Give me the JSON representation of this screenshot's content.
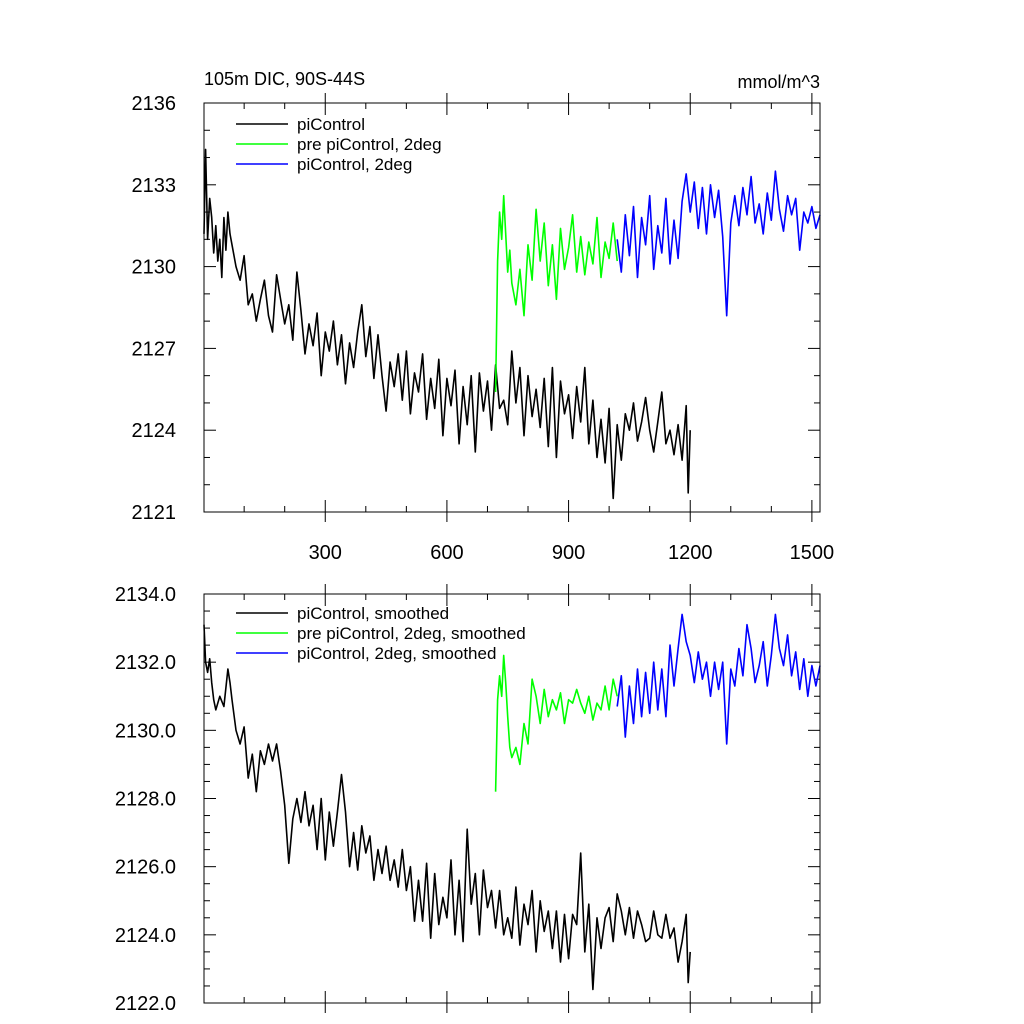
{
  "chart_data": [
    {
      "type": "line",
      "title": "105m DIC, 90S-44S",
      "units": "mmol/m^3",
      "xlim": [
        1,
        1520
      ],
      "ylim": [
        2121,
        2136
      ],
      "x_ticks": [
        300,
        600,
        900,
        1200,
        1500
      ],
      "y_ticks": [
        2121,
        2124,
        2127,
        2130,
        2133,
        2136
      ],
      "y_tick_labels": [
        "2121",
        "2124",
        "2127",
        "2130",
        "2133",
        "2136"
      ],
      "x_tick_labels": [
        "300",
        "600",
        "900",
        "1200",
        "1500"
      ],
      "legend_position": "top-left",
      "series": [
        {
          "name": "piControl",
          "color": "#000000",
          "x": [
            1,
            5,
            10,
            15,
            20,
            25,
            30,
            35,
            40,
            45,
            50,
            55,
            60,
            65,
            70,
            80,
            90,
            100,
            110,
            120,
            130,
            140,
            150,
            160,
            170,
            180,
            190,
            200,
            210,
            220,
            230,
            240,
            250,
            260,
            270,
            280,
            290,
            300,
            310,
            320,
            330,
            340,
            350,
            360,
            370,
            380,
            390,
            400,
            410,
            420,
            430,
            440,
            450,
            460,
            470,
            480,
            490,
            500,
            510,
            520,
            530,
            540,
            550,
            560,
            570,
            580,
            590,
            600,
            610,
            620,
            630,
            640,
            650,
            660,
            670,
            680,
            690,
            700,
            710,
            720,
            730,
            740,
            750,
            760,
            770,
            780,
            790,
            800,
            810,
            820,
            830,
            840,
            850,
            860,
            870,
            880,
            890,
            900,
            910,
            920,
            930,
            940,
            950,
            960,
            970,
            980,
            990,
            1000,
            1010,
            1020,
            1030,
            1040,
            1050,
            1060,
            1070,
            1080,
            1090,
            1100,
            1110,
            1120,
            1130,
            1140,
            1150,
            1160,
            1170,
            1180,
            1190,
            1195,
            1200
          ],
          "y": [
            2131.2,
            2134.3,
            2131.0,
            2132.5,
            2131.8,
            2130.5,
            2131.5,
            2130.2,
            2131.0,
            2129.6,
            2131.8,
            2130.6,
            2132.0,
            2131.2,
            2130.8,
            2130.0,
            2129.5,
            2130.4,
            2128.6,
            2129.0,
            2128.0,
            2128.8,
            2129.5,
            2128.2,
            2127.6,
            2129.7,
            2128.8,
            2127.9,
            2128.6,
            2127.3,
            2129.8,
            2128.4,
            2126.8,
            2127.9,
            2127.1,
            2128.3,
            2126.0,
            2127.6,
            2126.9,
            2128.0,
            2126.4,
            2127.5,
            2125.7,
            2127.2,
            2126.3,
            2127.6,
            2128.6,
            2126.7,
            2127.8,
            2125.9,
            2127.5,
            2126.0,
            2124.7,
            2126.5,
            2125.6,
            2126.8,
            2125.1,
            2126.9,
            2124.6,
            2126.1,
            2125.4,
            2126.8,
            2124.4,
            2125.9,
            2124.8,
            2126.6,
            2123.8,
            2125.9,
            2124.9,
            2126.2,
            2123.5,
            2125.6,
            2124.2,
            2126.0,
            2123.2,
            2126.1,
            2124.7,
            2125.8,
            2124.0,
            2126.4,
            2124.8,
            2125.1,
            2124.2,
            2126.9,
            2125.0,
            2126.3,
            2123.8,
            2126.0,
            2124.5,
            2125.5,
            2124.1,
            2125.9,
            2123.4,
            2126.3,
            2123.0,
            2125.8,
            2124.6,
            2125.3,
            2123.7,
            2125.6,
            2124.3,
            2126.3,
            2123.5,
            2125.1,
            2123.0,
            2124.4,
            2122.8,
            2124.8,
            2121.5,
            2124.2,
            2122.9,
            2124.6,
            2124.0,
            2125.0,
            2123.6,
            2124.3,
            2125.2,
            2124.0,
            2123.2,
            2124.3,
            2125.4,
            2123.5,
            2124.0,
            2123.1,
            2124.2,
            2122.9,
            2124.9,
            2121.7,
            2124.0
          ]
        },
        {
          "name": "pre piControl, 2deg",
          "color": "#00ff00",
          "x": [
            720,
            725,
            730,
            735,
            740,
            745,
            750,
            755,
            760,
            770,
            780,
            790,
            800,
            810,
            820,
            830,
            840,
            850,
            860,
            870,
            880,
            890,
            900,
            910,
            920,
            930,
            940,
            950,
            960,
            970,
            980,
            990,
            1000,
            1010,
            1020
          ],
          "y": [
            2125.4,
            2130.2,
            2132.0,
            2131.0,
            2132.6,
            2131.2,
            2129.8,
            2130.6,
            2129.4,
            2128.6,
            2129.9,
            2128.2,
            2130.8,
            2129.5,
            2132.1,
            2130.2,
            2131.6,
            2129.3,
            2130.8,
            2128.8,
            2131.4,
            2129.9,
            2130.7,
            2131.9,
            2129.8,
            2131.1,
            2129.7,
            2130.9,
            2130.1,
            2131.8,
            2129.6,
            2130.9,
            2130.3,
            2131.6,
            2130.2
          ]
        },
        {
          "name": "piControl, 2deg",
          "color": "#0000ff",
          "x": [
            1020,
            1030,
            1040,
            1050,
            1060,
            1070,
            1080,
            1090,
            1100,
            1110,
            1120,
            1130,
            1140,
            1150,
            1160,
            1170,
            1180,
            1190,
            1200,
            1210,
            1220,
            1230,
            1240,
            1250,
            1260,
            1270,
            1280,
            1290,
            1300,
            1310,
            1320,
            1330,
            1340,
            1350,
            1360,
            1370,
            1380,
            1390,
            1400,
            1410,
            1420,
            1430,
            1440,
            1450,
            1460,
            1470,
            1480,
            1490,
            1500,
            1510,
            1520
          ],
          "y": [
            2131.0,
            2129.8,
            2131.9,
            2130.4,
            2132.2,
            2129.6,
            2131.8,
            2130.8,
            2132.6,
            2129.9,
            2131.5,
            2130.5,
            2132.5,
            2130.1,
            2131.7,
            2130.3,
            2132.4,
            2133.4,
            2132.0,
            2133.1,
            2131.4,
            2132.9,
            2131.2,
            2133.0,
            2131.8,
            2132.8,
            2131.1,
            2128.2,
            2131.6,
            2132.6,
            2131.5,
            2132.9,
            2131.9,
            2133.3,
            2131.6,
            2132.3,
            2131.2,
            2132.7,
            2131.7,
            2133.5,
            2132.1,
            2131.3,
            2132.6,
            2131.9,
            2132.5,
            2130.6,
            2132.0,
            2131.6,
            2132.2,
            2131.4,
            2131.9
          ]
        }
      ]
    },
    {
      "type": "line",
      "title": "",
      "xlim": [
        1,
        1520
      ],
      "ylim": [
        2122.0,
        2134.0
      ],
      "x_ticks": [
        300,
        600,
        900,
        1200,
        1500
      ],
      "y_ticks": [
        2122,
        2124,
        2126,
        2128,
        2130,
        2132,
        2134
      ],
      "y_tick_labels": [
        "2122.0",
        "2124.0",
        "2126.0",
        "2128.0",
        "2130.0",
        "2132.0",
        "2134.0"
      ],
      "legend_position": "top-left",
      "series": [
        {
          "name": "piControl, smoothed",
          "color": "#000000",
          "x": [
            1,
            5,
            10,
            15,
            20,
            25,
            30,
            40,
            50,
            60,
            65,
            70,
            80,
            90,
            100,
            110,
            120,
            130,
            140,
            150,
            160,
            170,
            180,
            190,
            200,
            210,
            220,
            230,
            240,
            250,
            260,
            270,
            280,
            290,
            300,
            310,
            320,
            330,
            340,
            350,
            360,
            370,
            380,
            390,
            400,
            410,
            420,
            430,
            440,
            450,
            460,
            470,
            480,
            490,
            500,
            510,
            520,
            530,
            540,
            550,
            560,
            570,
            580,
            590,
            600,
            610,
            620,
            630,
            640,
            650,
            660,
            670,
            680,
            690,
            700,
            710,
            720,
            730,
            740,
            750,
            760,
            770,
            780,
            790,
            800,
            810,
            820,
            830,
            840,
            850,
            860,
            870,
            880,
            890,
            900,
            910,
            920,
            930,
            940,
            950,
            960,
            970,
            980,
            990,
            1000,
            1010,
            1020,
            1030,
            1040,
            1050,
            1060,
            1070,
            1080,
            1090,
            1100,
            1110,
            1120,
            1130,
            1140,
            1150,
            1160,
            1170,
            1180,
            1190,
            1195,
            1200
          ],
          "y": [
            2133.1,
            2132.0,
            2131.7,
            2132.1,
            2131.4,
            2130.9,
            2130.6,
            2131.0,
            2130.7,
            2131.8,
            2131.4,
            2130.9,
            2130.0,
            2129.6,
            2130.1,
            2128.6,
            2129.3,
            2128.2,
            2129.4,
            2129.0,
            2129.6,
            2129.1,
            2129.6,
            2128.8,
            2127.8,
            2126.1,
            2127.4,
            2128.0,
            2127.3,
            2128.2,
            2127.2,
            2127.8,
            2126.5,
            2128.0,
            2126.2,
            2127.6,
            2126.6,
            2127.6,
            2128.7,
            2127.6,
            2126.0,
            2127.0,
            2125.9,
            2127.2,
            2126.4,
            2126.9,
            2125.6,
            2126.5,
            2125.8,
            2126.6,
            2125.6,
            2126.2,
            2125.4,
            2126.5,
            2125.3,
            2126.0,
            2124.4,
            2125.6,
            2124.4,
            2126.1,
            2123.9,
            2125.8,
            2124.3,
            2125.1,
            2124.5,
            2126.2,
            2124.0,
            2125.6,
            2123.8,
            2127.1,
            2124.9,
            2125.8,
            2124.0,
            2125.9,
            2124.8,
            2125.3,
            2124.2,
            2125.3,
            2124.0,
            2124.5,
            2123.9,
            2125.4,
            2123.7,
            2124.9,
            2124.3,
            2125.3,
            2123.5,
            2125.0,
            2124.1,
            2124.7,
            2123.6,
            2124.7,
            2123.2,
            2124.6,
            2123.3,
            2124.6,
            2124.3,
            2126.4,
            2123.5,
            2124.9,
            2122.4,
            2124.5,
            2123.6,
            2124.5,
            2124.8,
            2123.8,
            2125.2,
            2124.7,
            2124.0,
            2124.8,
            2123.9,
            2124.7,
            2124.3,
            2123.8,
            2123.9,
            2124.7,
            2124.0,
            2123.9,
            2124.6,
            2123.9,
            2124.2,
            2123.2,
            2123.8,
            2124.6,
            2122.6,
            2123.5
          ],
          "note_x_shift": 0
        },
        {
          "name": "pre piControl, 2deg, smoothed",
          "color": "#00ff00",
          "x": [
            720,
            725,
            730,
            735,
            740,
            745,
            750,
            755,
            760,
            770,
            780,
            790,
            800,
            810,
            820,
            830,
            840,
            850,
            860,
            870,
            880,
            890,
            900,
            910,
            920,
            930,
            940,
            950,
            960,
            970,
            980,
            990,
            1000,
            1010,
            1020
          ],
          "y": [
            2128.2,
            2130.9,
            2131.6,
            2131.0,
            2132.2,
            2131.4,
            2130.4,
            2129.5,
            2129.2,
            2129.5,
            2129.0,
            2130.2,
            2129.6,
            2131.5,
            2131.0,
            2130.2,
            2131.2,
            2130.4,
            2130.9,
            2130.6,
            2131.1,
            2130.2,
            2130.9,
            2130.8,
            2131.2,
            2130.8,
            2130.5,
            2131.0,
            2130.3,
            2130.8,
            2130.6,
            2131.3,
            2130.6,
            2131.5,
            2131.0
          ]
        },
        {
          "name": "piControl, 2deg, smoothed",
          "color": "#0000ff",
          "x": [
            1020,
            1030,
            1040,
            1050,
            1060,
            1070,
            1080,
            1090,
            1100,
            1110,
            1120,
            1130,
            1140,
            1150,
            1160,
            1170,
            1180,
            1190,
            1200,
            1210,
            1220,
            1230,
            1240,
            1250,
            1260,
            1270,
            1280,
            1290,
            1300,
            1310,
            1320,
            1330,
            1340,
            1350,
            1360,
            1370,
            1380,
            1390,
            1400,
            1410,
            1420,
            1430,
            1440,
            1450,
            1460,
            1470,
            1480,
            1490,
            1500,
            1510,
            1520
          ],
          "y": [
            2130.7,
            2131.6,
            2129.8,
            2131.3,
            2130.2,
            2131.8,
            2130.4,
            2131.7,
            2130.5,
            2132.0,
            2130.6,
            2131.8,
            2130.4,
            2132.5,
            2131.3,
            2132.4,
            2133.4,
            2132.6,
            2132.2,
            2131.4,
            2132.3,
            2131.5,
            2132.0,
            2131.0,
            2132.0,
            2131.2,
            2132.0,
            2129.6,
            2131.8,
            2131.3,
            2132.4,
            2131.6,
            2133.1,
            2132.4,
            2131.4,
            2131.9,
            2132.6,
            2131.3,
            2132.2,
            2133.4,
            2132.4,
            2131.9,
            2132.8,
            2131.6,
            2132.3,
            2131.2,
            2132.1,
            2131.0,
            2131.9,
            2131.3,
            2131.9
          ]
        }
      ]
    }
  ]
}
